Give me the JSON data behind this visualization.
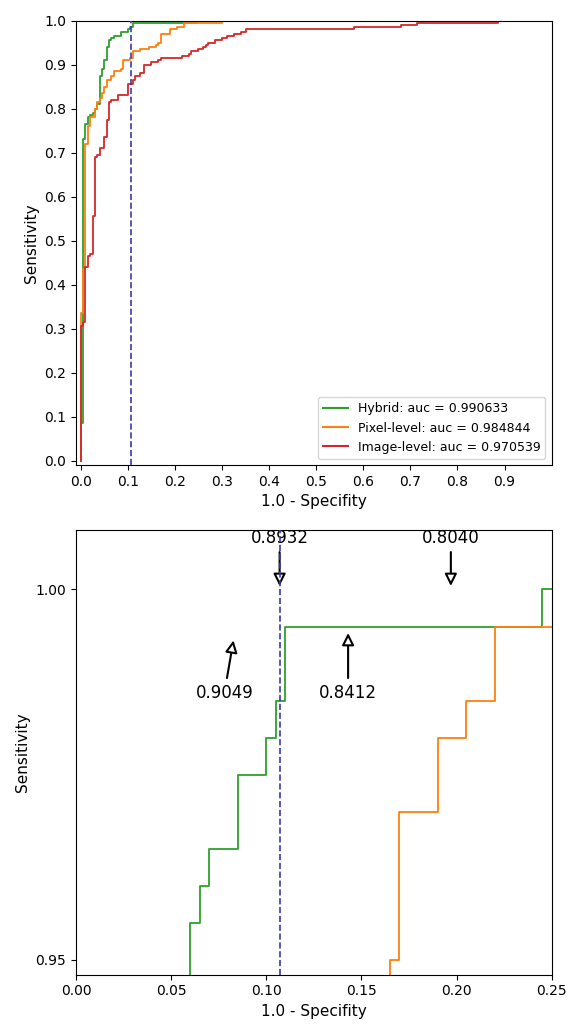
{
  "xlabel": "1.0 - Specifity",
  "ylabel": "Sensitivity",
  "legend_labels": [
    "Hybrid: auc = 0.990633",
    "Pixel-level: auc = 0.984844",
    "Image-level: auc = 0.970539"
  ],
  "colors": [
    "#2ca02c",
    "#ff7f0e",
    "#d62728"
  ],
  "dashed_line_x": 0.107,
  "dashed_line_color": "#3a3aaa",
  "zoom_xlim": [
    0.0,
    0.25
  ],
  "zoom_ylim": [
    0.948,
    1.008
  ],
  "zoom_yticks": [
    0.95,
    1.0
  ],
  "zoom_xticks": [
    0.0,
    0.05,
    0.1,
    0.15,
    0.2,
    0.25
  ],
  "full_xlim": [
    -0.01,
    1.0
  ],
  "full_ylim": [
    -0.01,
    1.0
  ],
  "full_xticks": [
    0.0,
    0.1,
    0.2,
    0.3,
    0.4,
    0.5,
    0.6,
    0.7,
    0.8,
    0.9
  ],
  "full_yticks": [
    0.0,
    0.1,
    0.2,
    0.3,
    0.4,
    0.5,
    0.6,
    0.7,
    0.8,
    0.9,
    1.0
  ]
}
